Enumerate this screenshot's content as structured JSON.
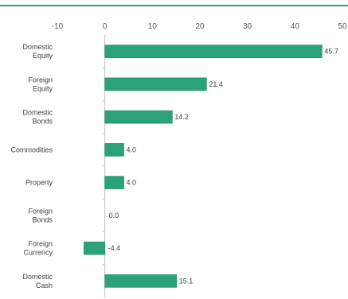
{
  "chart_data": {
    "type": "bar",
    "orientation": "horizontal",
    "title": "",
    "categories": [
      [
        "Domestic",
        "Equity"
      ],
      [
        "Foreign",
        "Equity"
      ],
      [
        "Domestic",
        "Bonds"
      ],
      [
        "Commodities"
      ],
      [
        "Property"
      ],
      [
        "Foreign",
        "Bonds"
      ],
      [
        "Foreign",
        "Currency"
      ],
      [
        "Domestic",
        "Cash"
      ]
    ],
    "values": [
      45.7,
      21.4,
      14.2,
      4.0,
      4.0,
      0.0,
      -4.4,
      15.1
    ],
    "value_labels": [
      "45.7",
      "21.4",
      "14.2",
      "4.0",
      "4.0",
      "0.0",
      "-4.4",
      "15.1"
    ],
    "xlim": [
      -10,
      50
    ],
    "xticks": [
      -10,
      0,
      10,
      20,
      30,
      40,
      50
    ],
    "xtick_position": "top",
    "grid": false,
    "legend": "none",
    "colors": {
      "bar": "#2aa37a",
      "bar_edge": "#1f8a66",
      "axis": "#bfbfbf",
      "accent": "#2aa37a"
    }
  }
}
